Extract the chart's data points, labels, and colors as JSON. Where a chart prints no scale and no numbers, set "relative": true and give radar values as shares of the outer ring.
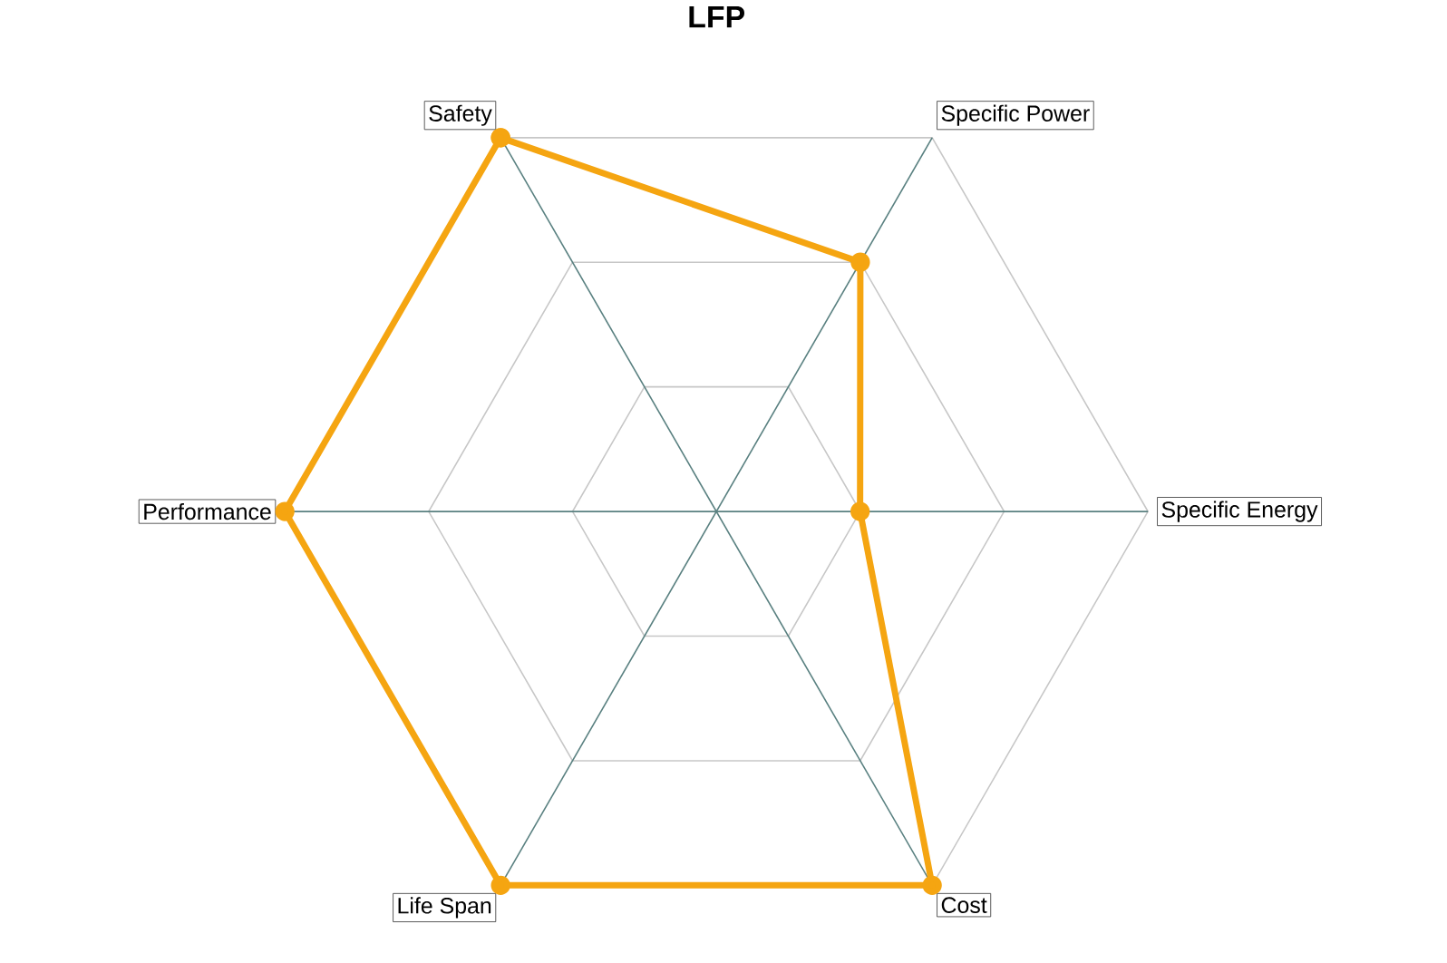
{
  "chart_data": {
    "type": "radar",
    "title": "LFP",
    "relative": true,
    "grid": true,
    "marker": "circle",
    "categories": [
      "Safety",
      "Specific Power",
      "Specific Energy",
      "Cost",
      "Life Span",
      "Performance"
    ],
    "series": [
      {
        "color": "#f5a511",
        "values": [
          1,
          0.667,
          0.333,
          1,
          1,
          1
        ]
      }
    ]
  }
}
